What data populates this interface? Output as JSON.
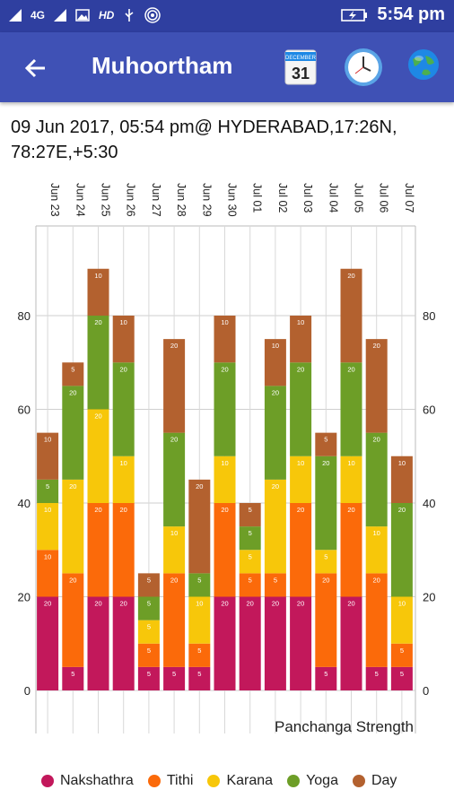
{
  "status_bar": {
    "network": "4G",
    "time": "5:54 pm",
    "icons": [
      "signal-icon",
      "signal-4g-icon",
      "image-icon",
      "hd-icon",
      "usb-icon",
      "hotspot-icon",
      "battery-charging-icon"
    ]
  },
  "app_bar": {
    "title": "Muhoortham",
    "back_icon": "arrow-left-icon",
    "calendar": {
      "month": "DECEMBER",
      "day": "31"
    },
    "clock_icon": "clock-icon",
    "globe_icon": "globe-icon"
  },
  "header": {
    "info": "09 Jun 2017, 05:54 pm@ HYDERABAD,17:26N, 78:27E,+5:30"
  },
  "colors": {
    "Nakshathra": "#c2185b",
    "Tithi": "#fb6a0a",
    "Karana": "#f7c70a",
    "Yoga": "#6d9e27",
    "Day": "#b3612f"
  },
  "chart_data": {
    "type": "bar",
    "stacked": true,
    "title": "Panchanga Strength",
    "categories": [
      "Jun 23",
      "Jun 24",
      "Jun 25",
      "Jun 26",
      "Jun 27",
      "Jun 28",
      "Jun 29",
      "Jun 30",
      "Jul 01",
      "Jul 02",
      "Jul 03",
      "Jul 04",
      "Jul 05",
      "Jul 06",
      "Jul 07"
    ],
    "ylim": [
      0,
      100
    ],
    "yticks": [
      0,
      20,
      40,
      60,
      80
    ],
    "grid": true,
    "legend_position": "bottom",
    "series": [
      {
        "name": "Nakshathra",
        "values": [
          20,
          5,
          20,
          20,
          5,
          5,
          5,
          20,
          20,
          20,
          20,
          5,
          20,
          5,
          5
        ]
      },
      {
        "name": "Tithi",
        "values": [
          10,
          20,
          20,
          20,
          5,
          20,
          5,
          20,
          5,
          5,
          20,
          20,
          20,
          20,
          5
        ]
      },
      {
        "name": "Karana",
        "values": [
          10,
          20,
          20,
          10,
          5,
          10,
          10,
          10,
          5,
          20,
          10,
          5,
          10,
          10,
          10
        ]
      },
      {
        "name": "Yoga",
        "values": [
          5,
          20,
          20,
          20,
          5,
          20,
          5,
          20,
          5,
          20,
          20,
          20,
          20,
          20,
          20
        ]
      },
      {
        "name": "Day",
        "values": [
          10,
          5,
          10,
          10,
          5,
          20,
          20,
          10,
          5,
          10,
          10,
          5,
          20,
          20,
          10
        ]
      }
    ]
  }
}
